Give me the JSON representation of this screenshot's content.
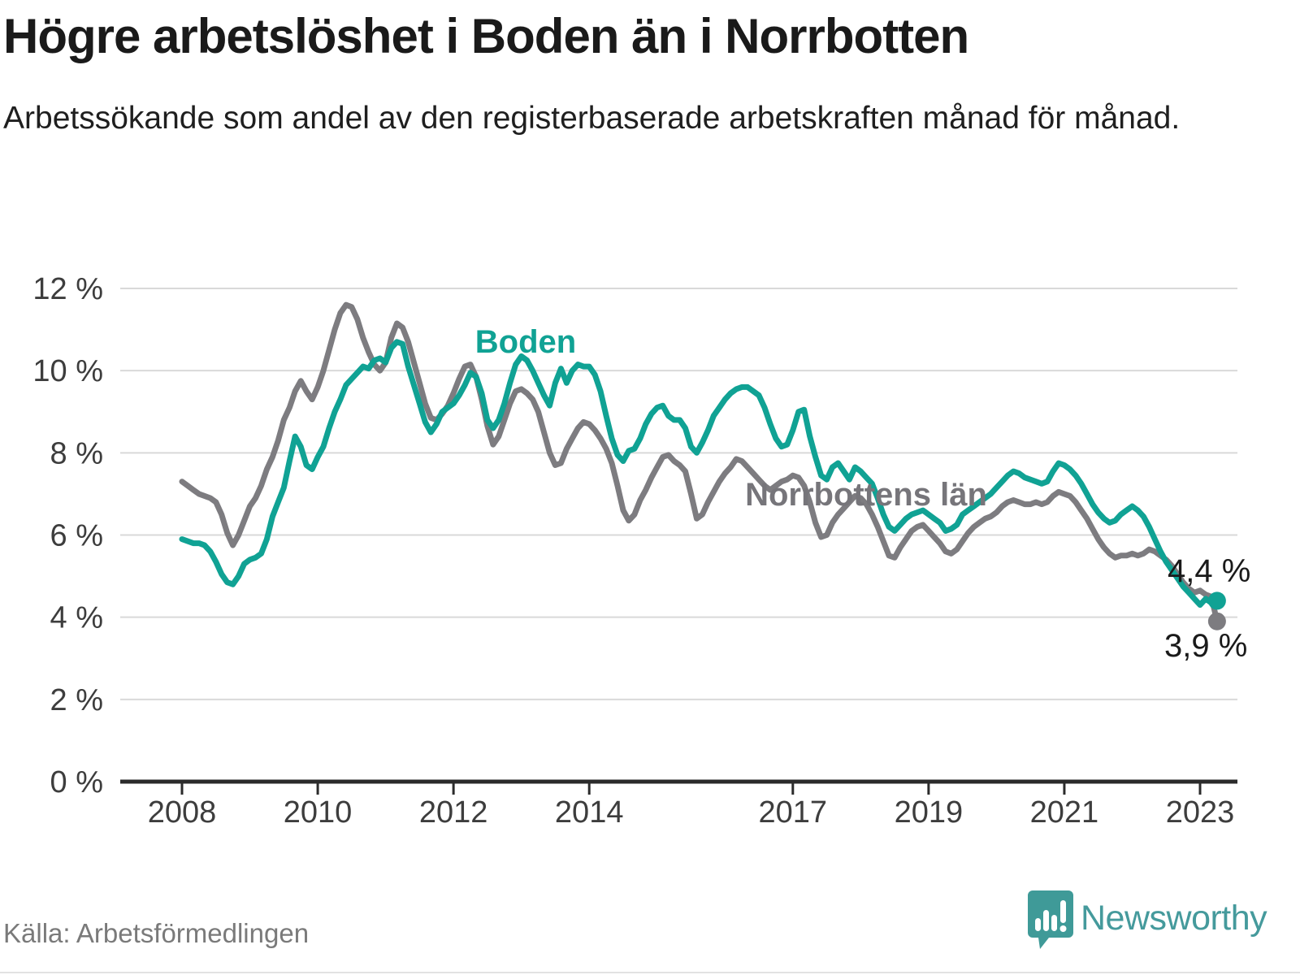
{
  "header": {
    "title": "Högre arbetslöshet i Boden än i Norrbotten",
    "subtitle": "Arbetssökande som andel av den registerbaserade arbetskraften månad för månad."
  },
  "footer": {
    "source": "Källa: Arbetsförmedlingen",
    "brand": "Newsworthy"
  },
  "colors": {
    "boden": "#10a294",
    "norrbotten": "#7d7c80",
    "grid": "#d9d9d9",
    "axis": "#2b2b2b",
    "brand_teal": "#459a9c",
    "pin_teal": "#3f9a98"
  },
  "chart_data": {
    "type": "line",
    "title": "Högre arbetslöshet i Boden än i Norrbotten",
    "x_unit": "month",
    "x_start": "2008-01",
    "x_end": "2023-04",
    "x_tick_years": [
      2008,
      2010,
      2012,
      2014,
      2017,
      2019,
      2021,
      2023
    ],
    "x_tick_labels": [
      "2008",
      "2010",
      "2012",
      "2014",
      "2017",
      "2019",
      "2021",
      "2023"
    ],
    "y_ticks": [
      "0 %",
      "2 %",
      "4 %",
      "6 %",
      "8 %",
      "10 %",
      "12 %"
    ],
    "ylabel": "",
    "xlabel": "",
    "ylim": [
      0,
      12
    ],
    "grid": true,
    "legend_position": "inline-labels",
    "series": [
      {
        "name": "Boden",
        "color": "#10a294",
        "end_label": "4,4 %",
        "end_value": 4.4,
        "values": [
          5.9,
          5.85,
          5.8,
          5.8,
          5.75,
          5.6,
          5.35,
          5.05,
          4.85,
          4.8,
          5.0,
          5.3,
          5.4,
          5.45,
          5.55,
          5.9,
          6.45,
          6.8,
          7.15,
          7.8,
          8.4,
          8.15,
          7.7,
          7.6,
          7.9,
          8.15,
          8.6,
          9.0,
          9.3,
          9.65,
          9.8,
          9.95,
          10.1,
          10.05,
          10.25,
          10.3,
          10.2,
          10.55,
          10.7,
          10.65,
          10.1,
          9.65,
          9.2,
          8.75,
          8.5,
          8.7,
          9.0,
          9.1,
          9.2,
          9.4,
          9.65,
          9.95,
          9.85,
          9.45,
          8.8,
          8.6,
          8.8,
          9.2,
          9.7,
          10.15,
          10.35,
          10.25,
          10.0,
          9.7,
          9.4,
          9.15,
          9.7,
          10.05,
          9.7,
          10.0,
          10.15,
          10.1,
          10.1,
          9.9,
          9.5,
          8.9,
          8.35,
          7.95,
          7.8,
          8.05,
          8.1,
          8.35,
          8.7,
          8.95,
          9.1,
          9.15,
          8.9,
          8.8,
          8.8,
          8.6,
          8.15,
          8.0,
          8.25,
          8.55,
          8.9,
          9.1,
          9.3,
          9.45,
          9.55,
          9.6,
          9.6,
          9.5,
          9.4,
          9.1,
          8.7,
          8.35,
          8.15,
          8.2,
          8.55,
          9.0,
          9.05,
          8.4,
          7.9,
          7.45,
          7.35,
          7.65,
          7.75,
          7.55,
          7.35,
          7.65,
          7.55,
          7.4,
          7.25,
          6.9,
          6.5,
          6.2,
          6.1,
          6.25,
          6.4,
          6.5,
          6.55,
          6.6,
          6.5,
          6.4,
          6.3,
          6.1,
          6.15,
          6.25,
          6.5,
          6.6,
          6.7,
          6.8,
          6.9,
          7.0,
          7.15,
          7.3,
          7.45,
          7.55,
          7.5,
          7.4,
          7.35,
          7.3,
          7.25,
          7.3,
          7.55,
          7.75,
          7.7,
          7.6,
          7.45,
          7.25,
          7.0,
          6.75,
          6.55,
          6.4,
          6.3,
          6.35,
          6.5,
          6.6,
          6.7,
          6.6,
          6.45,
          6.2,
          5.9,
          5.6,
          5.35,
          5.15,
          4.95,
          4.75,
          4.6,
          4.45,
          4.3,
          4.45,
          4.35,
          4.4
        ]
      },
      {
        "name": "Norrbottens län",
        "color": "#7d7c80",
        "end_label": "3,9 %",
        "end_value": 3.9,
        "values": [
          7.3,
          7.2,
          7.1,
          7.0,
          6.95,
          6.9,
          6.8,
          6.5,
          6.05,
          5.75,
          6.0,
          6.35,
          6.7,
          6.9,
          7.2,
          7.6,
          7.9,
          8.3,
          8.8,
          9.1,
          9.5,
          9.75,
          9.5,
          9.3,
          9.6,
          10.0,
          10.5,
          11.0,
          11.4,
          11.6,
          11.55,
          11.25,
          10.8,
          10.45,
          10.15,
          10.0,
          10.2,
          10.8,
          11.15,
          11.05,
          10.7,
          10.2,
          9.7,
          9.2,
          8.85,
          8.8,
          8.95,
          9.15,
          9.45,
          9.8,
          10.1,
          10.15,
          9.85,
          9.3,
          8.65,
          8.2,
          8.4,
          8.8,
          9.2,
          9.5,
          9.55,
          9.45,
          9.3,
          9.0,
          8.5,
          8.0,
          7.7,
          7.75,
          8.1,
          8.35,
          8.6,
          8.75,
          8.7,
          8.55,
          8.35,
          8.1,
          7.75,
          7.2,
          6.6,
          6.35,
          6.5,
          6.85,
          7.1,
          7.4,
          7.65,
          7.9,
          7.95,
          7.8,
          7.7,
          7.55,
          7.0,
          6.4,
          6.5,
          6.8,
          7.05,
          7.3,
          7.5,
          7.65,
          7.85,
          7.8,
          7.65,
          7.5,
          7.35,
          7.2,
          7.1,
          7.2,
          7.3,
          7.35,
          7.45,
          7.4,
          7.2,
          6.8,
          6.3,
          5.95,
          6.0,
          6.3,
          6.5,
          6.65,
          6.8,
          6.95,
          6.9,
          6.75,
          6.5,
          6.2,
          5.85,
          5.5,
          5.45,
          5.7,
          5.9,
          6.1,
          6.2,
          6.25,
          6.1,
          5.95,
          5.8,
          5.6,
          5.55,
          5.65,
          5.85,
          6.05,
          6.2,
          6.3,
          6.4,
          6.45,
          6.55,
          6.7,
          6.8,
          6.85,
          6.8,
          6.75,
          6.75,
          6.8,
          6.75,
          6.8,
          6.95,
          7.05,
          7.0,
          6.95,
          6.8,
          6.6,
          6.4,
          6.15,
          5.9,
          5.7,
          5.55,
          5.45,
          5.5,
          5.5,
          5.55,
          5.5,
          5.55,
          5.65,
          5.6,
          5.5,
          5.4,
          5.25,
          5.05,
          4.85,
          4.7,
          4.6,
          4.65,
          4.55,
          4.5,
          3.9
        ]
      }
    ]
  }
}
